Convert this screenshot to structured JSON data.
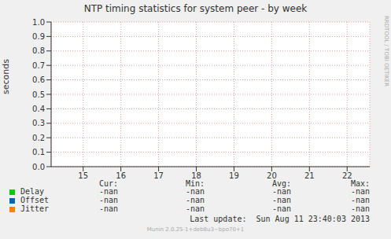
{
  "chart_data": {
    "type": "line",
    "title": "NTP timing statistics for system peer - by week",
    "y_label": "seconds",
    "x": [
      15,
      16,
      17,
      18,
      19,
      20,
      21,
      22
    ],
    "xlim": [
      14.15,
      22.6
    ],
    "xticks": [
      15,
      16,
      17,
      18,
      19,
      20,
      21,
      22
    ],
    "ylim": [
      0,
      1
    ],
    "yticks": [
      {
        "value": 0,
        "label": "0.0"
      },
      {
        "value": 0.1,
        "label": "0.1"
      },
      {
        "value": 0.2,
        "label": "0.2"
      },
      {
        "value": 0.3,
        "label": "0.3"
      },
      {
        "value": 0.4,
        "label": "0.4"
      },
      {
        "value": 0.5,
        "label": "0.5"
      },
      {
        "value": 0.6,
        "label": "0.6"
      },
      {
        "value": 0.7,
        "label": "0.7"
      },
      {
        "value": 0.8,
        "label": "0.8"
      },
      {
        "value": 0.9,
        "label": "0.9"
      },
      {
        "value": 1,
        "label": "1.0"
      }
    ],
    "grid": true,
    "series": [
      {
        "name": "Delay",
        "color": "#00cc00",
        "values": [
          null,
          null,
          null,
          null,
          null,
          null,
          null,
          null
        ],
        "stats": [
          "-nan",
          "-nan",
          "-nan",
          "-nan"
        ]
      },
      {
        "name": "Offset",
        "color": "#0066b3",
        "values": [
          null,
          null,
          null,
          null,
          null,
          null,
          null,
          null
        ],
        "stats": [
          "-nan",
          "-nan",
          "-nan",
          "-nan"
        ]
      },
      {
        "name": "Jitter",
        "color": "#ff8000",
        "values": [
          null,
          null,
          null,
          null,
          null,
          null,
          null,
          null
        ],
        "stats": [
          "-nan",
          "-nan",
          "-nan",
          "-nan"
        ]
      }
    ],
    "stats_columns": [
      "Cur:",
      "Min:",
      "Avg:",
      "Max:"
    ],
    "last_update": "Last update:  Sun Aug 11 23:40:03 2013",
    "footer": "Munin 2.0.25-1+deb8u3~bpo70+1",
    "side_text": "RRDTOOL / TOBI OETIKER"
  }
}
